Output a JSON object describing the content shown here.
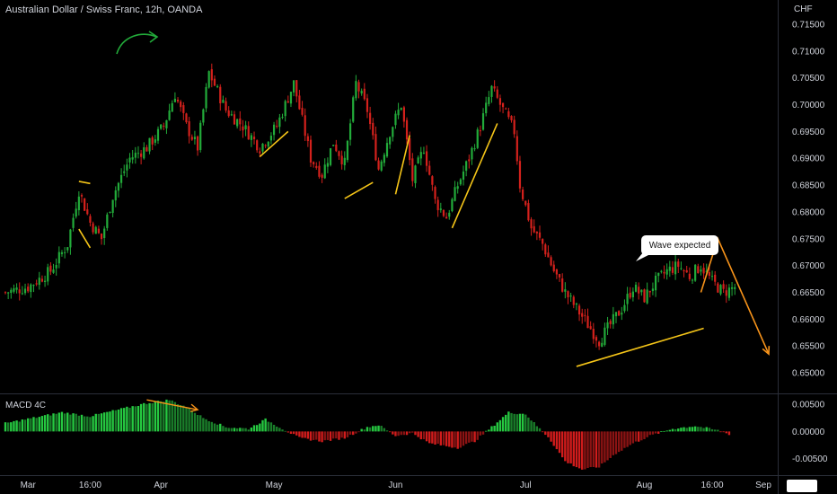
{
  "chart_title": "Australian Dollar / Swiss Franc, 12h, OANDA",
  "currency_label": "CHF",
  "indicator_title": "MACD 4C",
  "annotation_text": "Wave expected",
  "colors": {
    "up": "#22ab3a",
    "down": "#d4211c",
    "trendline": "#f5c518",
    "projection": "#f7931a",
    "arrow": "#22ab3a"
  },
  "chart_data": [
    {
      "type": "candlestick",
      "title": "Australian Dollar / Swiss Franc, 12h, OANDA",
      "ylabel": "CHF",
      "ylim": [
        0.6465,
        0.7165
      ],
      "y_ticks": [
        "0.71500",
        "0.71000",
        "0.70500",
        "0.70000",
        "0.69500",
        "0.69000",
        "0.68500",
        "0.68000",
        "0.67500",
        "0.67000",
        "0.66500",
        "0.66000",
        "0.65500",
        "0.65000"
      ],
      "x_ticks": [
        "Mar",
        "16:00",
        "Apr",
        "May",
        "Jun",
        "Jul",
        "Aug",
        "16:00",
        "Sep"
      ],
      "price_path": [
        [
          0,
          0.665
        ],
        [
          8,
          0.666
        ],
        [
          16,
          0.669
        ],
        [
          22,
          0.674
        ],
        [
          26,
          0.684
        ],
        [
          30,
          0.678
        ],
        [
          34,
          0.675
        ],
        [
          38,
          0.683
        ],
        [
          44,
          0.69
        ],
        [
          50,
          0.692
        ],
        [
          56,
          0.696
        ],
        [
          60,
          0.702
        ],
        [
          64,
          0.696
        ],
        [
          68,
          0.692
        ],
        [
          72,
          0.706
        ],
        [
          78,
          0.699
        ],
        [
          84,
          0.696
        ],
        [
          90,
          0.692
        ],
        [
          96,
          0.696
        ],
        [
          102,
          0.704
        ],
        [
          108,
          0.69
        ],
        [
          112,
          0.687
        ],
        [
          116,
          0.693
        ],
        [
          120,
          0.689
        ],
        [
          124,
          0.704
        ],
        [
          128,
          0.699
        ],
        [
          132,
          0.688
        ],
        [
          136,
          0.695
        ],
        [
          140,
          0.7
        ],
        [
          144,
          0.686
        ],
        [
          148,
          0.692
        ],
        [
          152,
          0.682
        ],
        [
          156,
          0.679
        ],
        [
          160,
          0.685
        ],
        [
          164,
          0.69
        ],
        [
          168,
          0.696
        ],
        [
          172,
          0.703
        ],
        [
          176,
          0.699
        ],
        [
          180,
          0.695
        ],
        [
          182,
          0.685
        ],
        [
          186,
          0.677
        ],
        [
          190,
          0.674
        ],
        [
          194,
          0.669
        ],
        [
          198,
          0.665
        ],
        [
          202,
          0.662
        ],
        [
          206,
          0.659
        ],
        [
          210,
          0.656
        ],
        [
          214,
          0.659
        ],
        [
          218,
          0.662
        ],
        [
          222,
          0.666
        ],
        [
          226,
          0.664
        ],
        [
          230,
          0.667
        ],
        [
          234,
          0.669
        ],
        [
          238,
          0.67
        ],
        [
          242,
          0.668
        ],
        [
          246,
          0.67
        ],
        [
          250,
          0.667
        ],
        [
          254,
          0.665
        ],
        [
          258,
          0.666
        ]
      ],
      "trendlines": [
        {
          "from": [
            26,
            0.6857
          ],
          "to": [
            30,
            0.6853
          ]
        },
        {
          "from": [
            26,
            0.6768
          ],
          "to": [
            30,
            0.6733
          ]
        },
        {
          "from": [
            90,
            0.6903
          ],
          "to": [
            100,
            0.695
          ]
        },
        {
          "from": [
            120,
            0.6825
          ],
          "to": [
            130,
            0.6855
          ]
        },
        {
          "from": [
            138,
            0.6833
          ],
          "to": [
            143,
            0.6943
          ]
        },
        {
          "from": [
            158,
            0.677
          ],
          "to": [
            174,
            0.6965
          ]
        },
        {
          "from": [
            202,
            0.6512
          ],
          "to": [
            247,
            0.6583
          ]
        }
      ],
      "projection": [
        [
          246,
          0.665
        ],
        [
          252,
          0.675
        ],
        [
          270,
          0.6535
        ]
      ],
      "annotations": [
        "Wave expected"
      ]
    },
    {
      "type": "bar",
      "title": "MACD 4C",
      "ylim": [
        -0.0077,
        0.0065
      ],
      "y_ticks": [
        "0.00500",
        "0.00000",
        "-0.00500"
      ],
      "histogram_path": [
        [
          0,
          0.0015
        ],
        [
          10,
          0.0025
        ],
        [
          20,
          0.0035
        ],
        [
          30,
          0.0028
        ],
        [
          40,
          0.004
        ],
        [
          50,
          0.0052
        ],
        [
          58,
          0.0058
        ],
        [
          64,
          0.0045
        ],
        [
          70,
          0.0025
        ],
        [
          78,
          0.0008
        ],
        [
          86,
          0.0005
        ],
        [
          92,
          0.0022
        ],
        [
          98,
          0.0005
        ],
        [
          104,
          -0.0012
        ],
        [
          112,
          -0.0018
        ],
        [
          120,
          -0.0012
        ],
        [
          128,
          0.0008
        ],
        [
          132,
          0.0012
        ],
        [
          138,
          -0.0008
        ],
        [
          144,
          -0.0003
        ],
        [
          150,
          -0.0022
        ],
        [
          160,
          -0.003
        ],
        [
          166,
          -0.0018
        ],
        [
          172,
          0.0008
        ],
        [
          178,
          0.0035
        ],
        [
          184,
          0.0032
        ],
        [
          188,
          0.001
        ],
        [
          192,
          -0.001
        ],
        [
          198,
          -0.0055
        ],
        [
          204,
          -0.007
        ],
        [
          210,
          -0.0065
        ],
        [
          216,
          -0.004
        ],
        [
          222,
          -0.0022
        ],
        [
          228,
          -0.0008
        ],
        [
          236,
          0.0005
        ],
        [
          244,
          0.001
        ],
        [
          252,
          0.0002
        ],
        [
          256,
          -0.0005
        ]
      ]
    }
  ]
}
